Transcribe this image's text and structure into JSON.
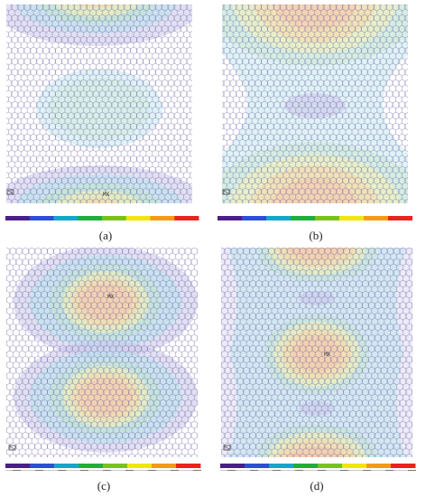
{
  "figure": {
    "panels": [
      {
        "id": "a",
        "caption": "(a)",
        "pattern": "hot-ellipses-top-and-bottom-edges-cool-center-ellipse"
      },
      {
        "id": "b",
        "caption": "(b)",
        "pattern": "hot-wide-arches-top-and-bottom-cool-center-bowtie"
      },
      {
        "id": "c",
        "caption": "(c)",
        "pattern": "two-hot-ellipses-upper-and-lower-middle"
      },
      {
        "id": "d",
        "caption": "(d)",
        "pattern": "three-hot-regions-top-center-bottom"
      }
    ],
    "colorbar_colors": [
      "#4b1f8a",
      "#2d4fd6",
      "#16a6c9",
      "#1fae3a",
      "#79c21d",
      "#f0e60f",
      "#f59a16",
      "#e8241c"
    ],
    "mesh_color": "#6a5a9e",
    "contour_colors": {
      "cool": "#c9c6ea",
      "cyan": "#b8e3ec",
      "green": "#bfe6c0",
      "yellow": "#f4f0b4",
      "orange": "#f9d6a8",
      "red": "#f6b8ad"
    },
    "marker_glyph": "MX",
    "corner_mark": "triad"
  }
}
